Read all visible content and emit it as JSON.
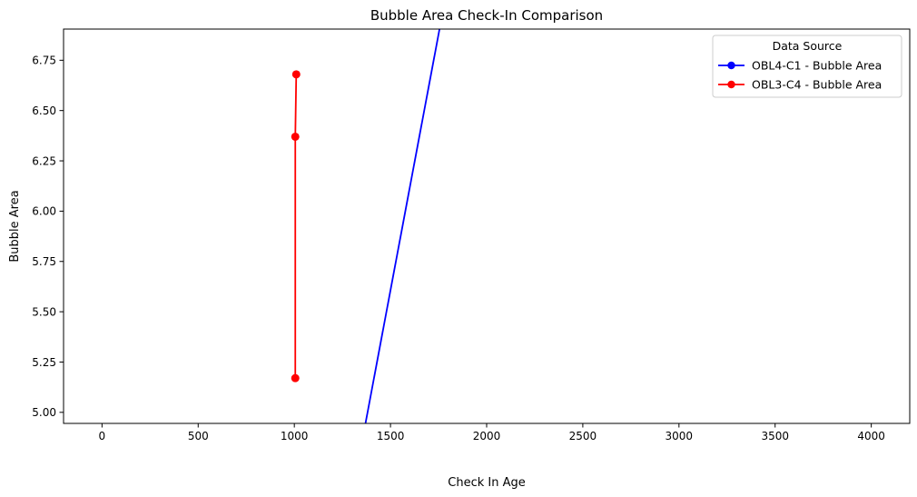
{
  "chart_data": {
    "type": "line",
    "title": "Bubble Area Check-In Comparison",
    "xlabel": "Check In Age",
    "ylabel": "Bubble Area",
    "xlim": [
      -200,
      4200
    ],
    "ylim": [
      4.945,
      6.905
    ],
    "x_ticks": [
      0,
      500,
      1000,
      1500,
      2000,
      2500,
      3000,
      3500,
      4000
    ],
    "y_ticks": [
      5.0,
      5.25,
      5.5,
      5.75,
      6.0,
      6.25,
      6.5,
      6.75
    ],
    "grid": false,
    "legend": {
      "title": "Data Source",
      "placement": "top-right"
    },
    "series": [
      {
        "name": "OBL4-C1 - Bubble Area",
        "color": "#0000ff",
        "marker": "circle",
        "x": [
          1370,
          1755
        ],
        "y": [
          4.945,
          6.905
        ]
      },
      {
        "name": "OBL3-C4 - Bubble Area",
        "color": "#ff0000",
        "marker": "circle",
        "x": [
          1005,
          1005,
          1010
        ],
        "y": [
          5.17,
          6.37,
          6.68
        ]
      }
    ]
  }
}
